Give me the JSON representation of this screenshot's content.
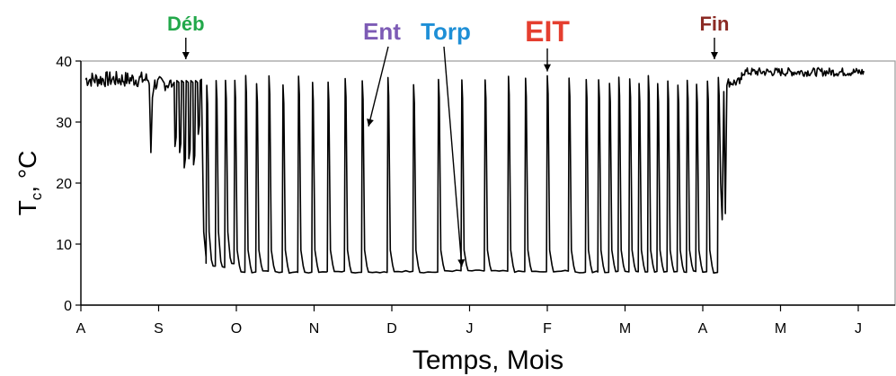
{
  "chart_data": {
    "type": "line",
    "xlabel": "Temps, Mois",
    "ylabel_main": "T",
    "ylabel_sub": "c",
    "ylabel_rest": ", °C",
    "x_ticks": [
      "A",
      "S",
      "O",
      "N",
      "D",
      "J",
      "F",
      "M",
      "A",
      "M",
      "J"
    ],
    "x_range_months": [
      0,
      10.1
    ],
    "ylim": [
      0,
      40
    ],
    "y_ticks": [
      0,
      10,
      20,
      30,
      40
    ],
    "grid": false,
    "series_color": "#000000",
    "annotations": [
      {
        "label": "Déb",
        "color": "#22a84a",
        "month": 1.35,
        "y": 40
      },
      {
        "label": "Ent",
        "color": "#7d5bb5",
        "month": 3.7,
        "y": 29
      },
      {
        "label": "Torp",
        "color": "#1e8fd6",
        "month": 4.9,
        "y": 6
      },
      {
        "label": "EIT",
        "color": "#e53e2f",
        "month": 6.0,
        "y": 38
      },
      {
        "label": "Fin",
        "color": "#8b2a24",
        "month": 8.15,
        "y": 40
      }
    ],
    "euthermic_level": 37.5,
    "torpor_level": 5.5,
    "arousals_months": [
      1.62,
      1.74,
      1.86,
      1.98,
      2.12,
      2.26,
      2.42,
      2.6,
      2.8,
      2.98,
      3.18,
      3.4,
      3.62,
      3.95,
      4.28,
      4.6,
      4.9,
      5.2,
      5.5,
      5.72,
      6.0,
      6.28,
      6.5,
      6.66,
      6.8,
      6.92,
      7.06,
      7.18,
      7.3,
      7.42,
      7.55,
      7.68,
      7.8,
      7.92,
      8.06,
      8.2
    ]
  }
}
